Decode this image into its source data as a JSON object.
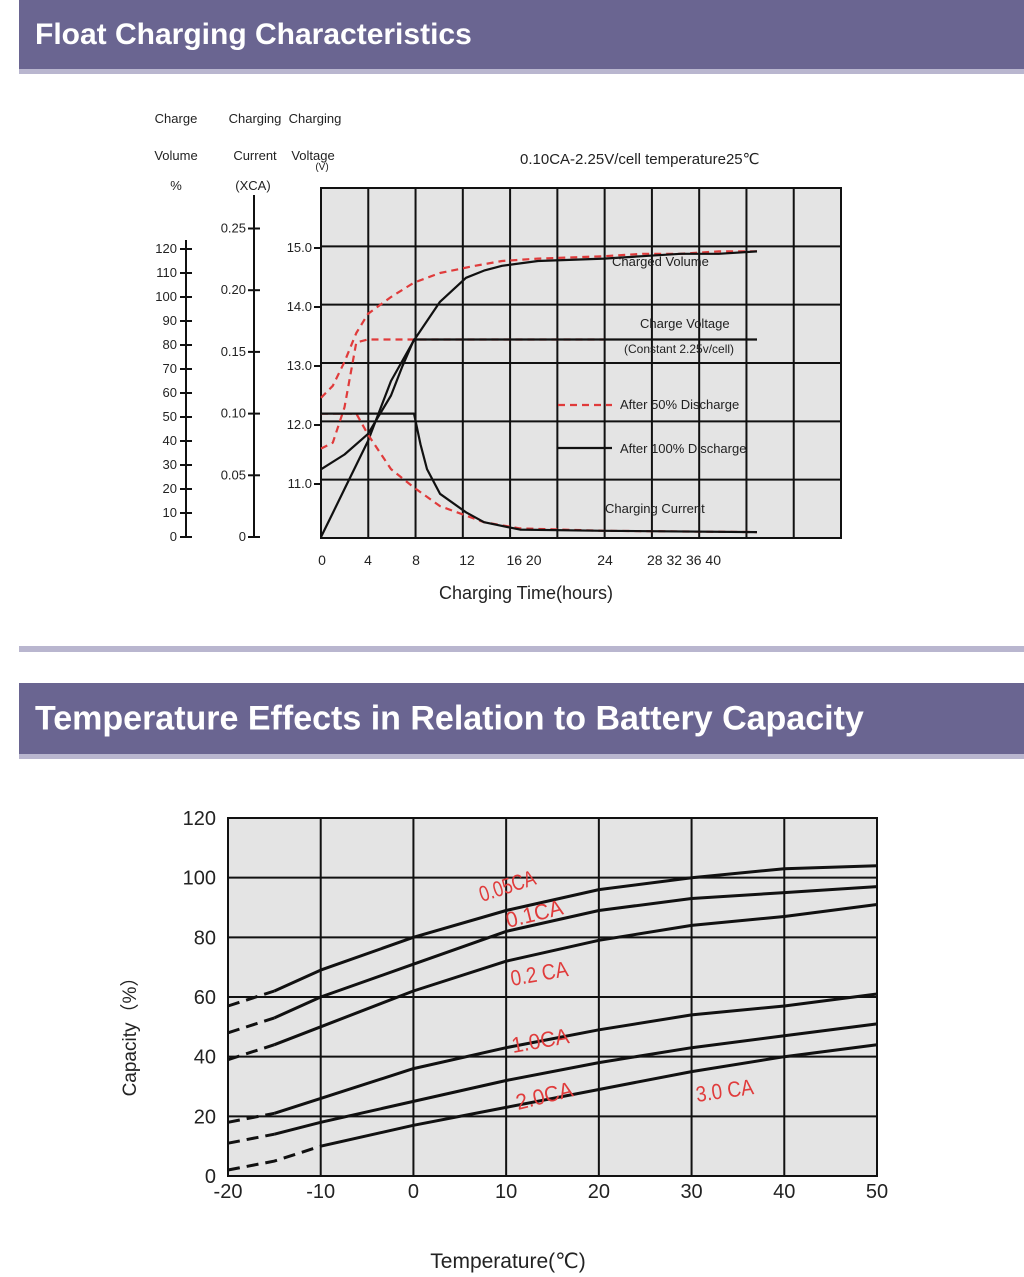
{
  "sections": {
    "float_title": "Float Charging Characteristics",
    "temp_title": "Temperature Effects in Relation to Battery Capacity"
  },
  "colors": {
    "banner": "#6a6591",
    "banner_border": "#b9b6cf",
    "plot_bg": "#e4e4e4",
    "red": "#e03b3b",
    "ink": "#111111"
  },
  "chart_data": [
    {
      "type": "line",
      "title": "",
      "subtitle": "0.10CA-2.25V/cell temperature25℃",
      "xlabel": "Charging Time(hours)",
      "x_ticks": [
        "0",
        "4",
        "8",
        "12",
        "16 20",
        "24",
        "28 32 36 40"
      ],
      "axes": {
        "charge_volume": {
          "label": [
            "Charge",
            "Volume",
            "%"
          ],
          "ticks": [
            "120",
            "110",
            "100",
            "90",
            "80",
            "70",
            "60",
            "50",
            "40",
            "30",
            "20",
            "10",
            "0"
          ]
        },
        "charging_current": {
          "label": [
            "Charging",
            "Current",
            "(XCA)"
          ],
          "ticks": [
            "0.25",
            "0.20",
            "0.15",
            "0.10",
            "0.05",
            "0"
          ]
        },
        "charging_voltage": {
          "label": [
            "Charging",
            "Voltage",
            "(V)"
          ],
          "ticks": [
            "15.0",
            "14.0",
            "13.0",
            "12.0",
            "11.0"
          ]
        }
      },
      "grid": true,
      "legend": [
        {
          "name": "After 50% Discharge",
          "style": "dashed",
          "color": "#e03b3b"
        },
        {
          "name": "After 100% Discharge",
          "style": "solid",
          "color": "#111111"
        }
      ],
      "annotations": [
        "Charged Volume",
        "Charge Voltage",
        "(Constant 2.25v/cell)",
        "Charging Current"
      ],
      "series": [
        {
          "group": "charged_volume",
          "style": "dashed",
          "points": [
            [
              0,
              58
            ],
            [
              1,
              63
            ],
            [
              2,
              73
            ],
            [
              3,
              85
            ],
            [
              4,
              93
            ],
            [
              6,
              100
            ],
            [
              8,
              106
            ],
            [
              10,
              110
            ],
            [
              13,
              113
            ],
            [
              16,
              115
            ],
            [
              20,
              116
            ],
            [
              24,
              117
            ],
            [
              28,
              118
            ],
            [
              32,
              118
            ],
            [
              36,
              119
            ],
            [
              40,
              119
            ]
          ]
        },
        {
          "group": "charged_volume",
          "style": "solid",
          "points": [
            [
              0,
              0
            ],
            [
              1,
              10
            ],
            [
              2,
              20
            ],
            [
              4,
              40
            ],
            [
              6,
              65
            ],
            [
              8,
              82
            ],
            [
              10,
              98
            ],
            [
              12,
              108
            ],
            [
              14,
              111
            ],
            [
              16,
              113
            ],
            [
              20,
              115
            ],
            [
              24,
              116
            ],
            [
              28,
              117
            ],
            [
              32,
              118
            ],
            [
              36,
              118
            ],
            [
              40,
              119
            ]
          ]
        },
        {
          "group": "charge_voltage",
          "style": "dashed",
          "points": [
            [
              0,
              11.6
            ],
            [
              1,
              11.7
            ],
            [
              2,
              12.3
            ],
            [
              3,
              13.4
            ],
            [
              4,
              13.45
            ],
            [
              8,
              13.45
            ],
            [
              12,
              13.45
            ],
            [
              24,
              13.45
            ]
          ]
        },
        {
          "group": "charge_voltage",
          "style": "solid",
          "points": [
            [
              0,
              11.25
            ],
            [
              2,
              11.5
            ],
            [
              4,
              11.85
            ],
            [
              6,
              12.5
            ],
            [
              7,
              13.0
            ],
            [
              8,
              13.45
            ],
            [
              12,
              13.45
            ],
            [
              24,
              13.45
            ],
            [
              40,
              13.45
            ]
          ]
        },
        {
          "group": "charging_current",
          "style": "dashed",
          "points": [
            [
              0,
              0.1
            ],
            [
              3,
              0.1
            ],
            [
              4,
              0.083
            ],
            [
              6,
              0.055
            ],
            [
              8,
              0.04
            ],
            [
              10,
              0.025
            ],
            [
              14,
              0.012
            ],
            [
              18,
              0.007
            ],
            [
              24,
              0.005
            ],
            [
              40,
              0.004
            ]
          ]
        },
        {
          "group": "charging_current",
          "style": "solid",
          "points": [
            [
              0,
              0.1
            ],
            [
              8,
              0.1
            ],
            [
              8.5,
              0.075
            ],
            [
              9,
              0.055
            ],
            [
              10,
              0.035
            ],
            [
              12,
              0.02
            ],
            [
              14,
              0.012
            ],
            [
              18,
              0.006
            ],
            [
              24,
              0.005
            ],
            [
              40,
              0.004
            ]
          ]
        }
      ]
    },
    {
      "type": "line",
      "title": "",
      "xlabel": "Temperature(℃)",
      "ylabel": "Capacity（%）",
      "xlim": [
        -20,
        50
      ],
      "ylim": [
        0,
        120
      ],
      "x_ticks": [
        "-20",
        "-10",
        "0",
        "10",
        "20",
        "30",
        "40",
        "50"
      ],
      "y_ticks": [
        "120",
        "100",
        "80",
        "60",
        "40",
        "20",
        "0"
      ],
      "grid": true,
      "series": [
        {
          "name": "0.05CA",
          "dashed_below": -15,
          "points": [
            [
              -20,
              57
            ],
            [
              -15,
              62
            ],
            [
              -10,
              69
            ],
            [
              0,
              80
            ],
            [
              10,
              89
            ],
            [
              20,
              96
            ],
            [
              30,
              100
            ],
            [
              40,
              103
            ],
            [
              50,
              104
            ]
          ]
        },
        {
          "name": "0.1CA",
          "dashed_below": -15,
          "points": [
            [
              -20,
              48
            ],
            [
              -15,
              53
            ],
            [
              -10,
              60
            ],
            [
              0,
              71
            ],
            [
              10,
              82
            ],
            [
              20,
              89
            ],
            [
              30,
              93
            ],
            [
              40,
              95
            ],
            [
              50,
              97
            ]
          ]
        },
        {
          "name": "0.2 CA",
          "dashed_below": -15,
          "points": [
            [
              -20,
              39
            ],
            [
              -15,
              44
            ],
            [
              -10,
              50
            ],
            [
              0,
              62
            ],
            [
              10,
              72
            ],
            [
              20,
              79
            ],
            [
              30,
              84
            ],
            [
              40,
              87
            ],
            [
              50,
              91
            ]
          ]
        },
        {
          "name": "1.0CA",
          "dashed_below": -15,
          "points": [
            [
              -20,
              18
            ],
            [
              -15,
              21
            ],
            [
              -10,
              26
            ],
            [
              0,
              36
            ],
            [
              10,
              43
            ],
            [
              20,
              49
            ],
            [
              30,
              54
            ],
            [
              40,
              57
            ],
            [
              50,
              61
            ]
          ]
        },
        {
          "name": "2.0CA",
          "dashed_below": -15,
          "points": [
            [
              -20,
              11
            ],
            [
              -15,
              14
            ],
            [
              -10,
              18
            ],
            [
              0,
              25
            ],
            [
              10,
              32
            ],
            [
              20,
              38
            ],
            [
              30,
              43
            ],
            [
              40,
              47
            ],
            [
              50,
              51
            ]
          ]
        },
        {
          "name": "3.0 CA",
          "dashed_below": -10,
          "points": [
            [
              -20,
              2
            ],
            [
              -15,
              5
            ],
            [
              -10,
              10
            ],
            [
              0,
              17
            ],
            [
              10,
              23
            ],
            [
              20,
              29
            ],
            [
              30,
              35
            ],
            [
              40,
              40
            ],
            [
              50,
              44
            ]
          ]
        }
      ]
    }
  ]
}
